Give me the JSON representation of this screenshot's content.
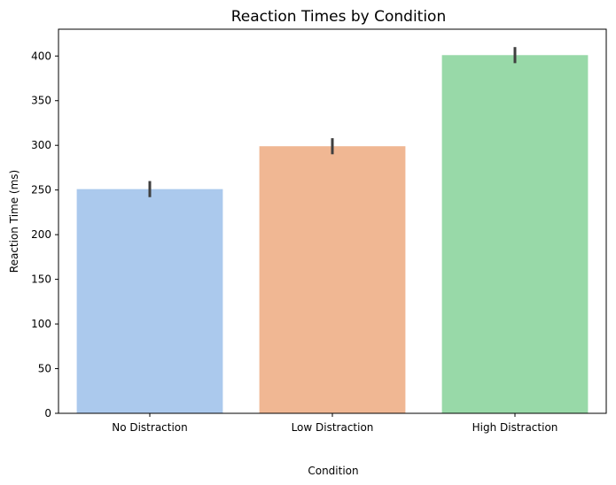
{
  "chart_data": {
    "type": "bar",
    "title": "Reaction Times by Condition",
    "xlabel": "Condition",
    "ylabel": "Reaction Time (ms)",
    "categories": [
      "No Distraction",
      "Low Distraction",
      "High Distraction"
    ],
    "values": [
      251,
      299,
      401
    ],
    "error_bars": [
      {
        "low": 242,
        "high": 260
      },
      {
        "low": 290,
        "high": 308
      },
      {
        "low": 392,
        "high": 410
      }
    ],
    "colors": [
      "#abc9ed",
      "#f0b793",
      "#98d9a8"
    ],
    "error_bar_color": "#3f3f3f",
    "ylim": [
      0,
      430
    ],
    "yticks": [
      0,
      50,
      100,
      150,
      200,
      250,
      300,
      350,
      400
    ],
    "grid": false,
    "legend": "none"
  }
}
